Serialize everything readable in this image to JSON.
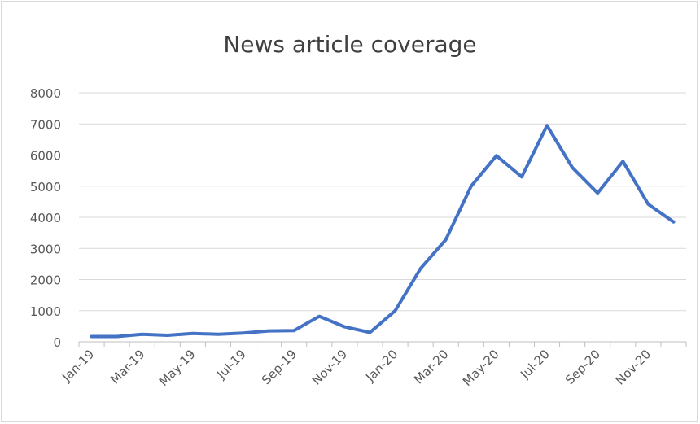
{
  "chart_data": {
    "type": "line",
    "title": "News article coverage",
    "xlabel": "",
    "ylabel": "",
    "ylim": [
      0,
      8000
    ],
    "yticks": [
      "0",
      "1000",
      "2000",
      "3000",
      "4000",
      "5000",
      "6000",
      "7000",
      "8000"
    ],
    "x": [
      "Jan-19",
      "Feb-19",
      "Mar-19",
      "Apr-19",
      "May-19",
      "Jun-19",
      "Jul-19",
      "Aug-19",
      "Sep-19",
      "Oct-19",
      "Nov-19",
      "Dec-19",
      "Jan-20",
      "Feb-20",
      "Mar-20",
      "Apr-20",
      "May-20",
      "Jun-20",
      "Jul-20",
      "Aug-20",
      "Sep-20",
      "Oct-20",
      "Nov-20",
      "Dec-20"
    ],
    "xtick_labels_shown": [
      "Jan-19",
      "Mar-19",
      "May-19",
      "Jul-19",
      "Sep-19",
      "Nov-19",
      "Jan-20",
      "Mar-20",
      "May-20",
      "Jul-20",
      "Sep-20",
      "Nov-20"
    ],
    "series": [
      {
        "color": "#4472C4",
        "values": [
          170,
          170,
          240,
          210,
          270,
          240,
          280,
          350,
          360,
          820,
          480,
          300,
          1000,
          2350,
          3280,
          5000,
          5980,
          5300,
          6950,
          5600,
          4780,
          5800,
          4420,
          3850
        ]
      }
    ],
    "grid": true,
    "legend": "none"
  }
}
